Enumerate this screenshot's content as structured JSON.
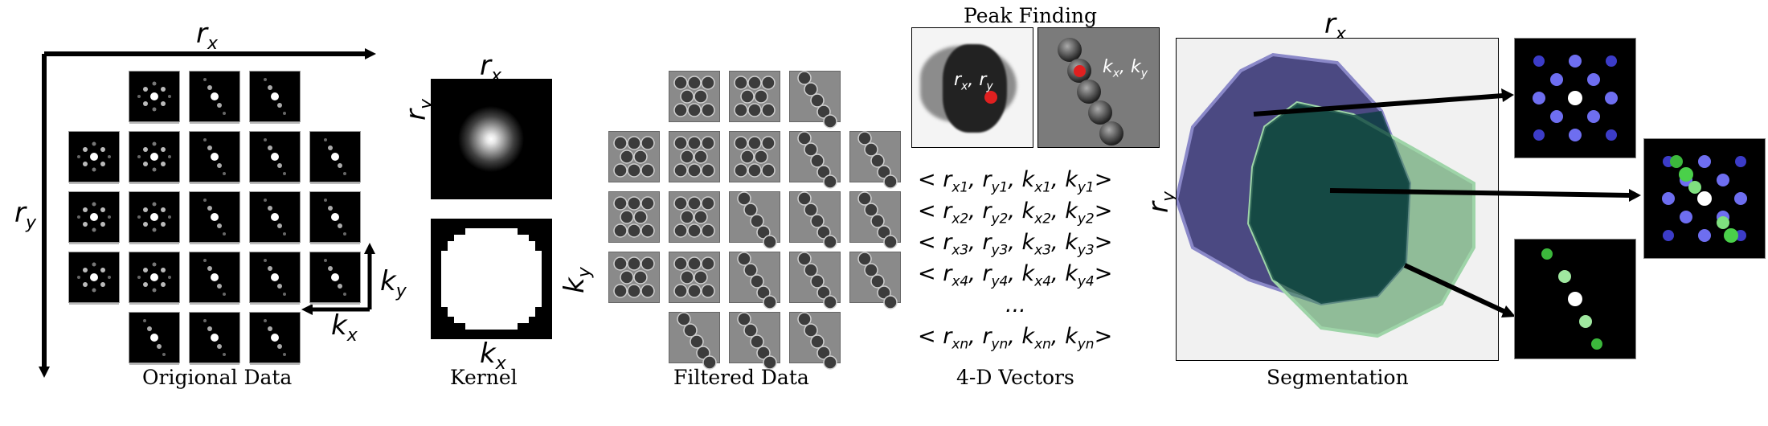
{
  "sections": {
    "original": {
      "caption": "Origional Data",
      "x_axis": "r",
      "x_sub": "x",
      "y_axis": "r",
      "y_sub": "y",
      "kx": "k",
      "kx_sub": "x",
      "ky": "k",
      "ky_sub": "y"
    },
    "kernel": {
      "caption": "Kernel",
      "top_label": "r",
      "top_sub": "x",
      "left_label": "r",
      "left_sub": "y",
      "right_label": "k",
      "right_sub": "y",
      "bottom_label": "k",
      "bottom_sub": "x"
    },
    "filtered": {
      "caption": "Filtered Data"
    },
    "vectors": {
      "caption": "4-D Vectors",
      "peak_title": "Peak Finding",
      "peak_label_r": "r",
      "peak_label_r_sub1": "x",
      "peak_label_r_sub2": "y",
      "peak_label_k": "k",
      "peak_label_k_sub1": "x",
      "peak_label_k_sub2": "y",
      "rows": [
        "1",
        "2",
        "3",
        "4",
        "…",
        "n"
      ]
    },
    "segmentation": {
      "caption": "Segmentation",
      "x_label": "r",
      "x_sub": "x",
      "y_label": "r",
      "y_sub": "y"
    }
  },
  "colors": {
    "blue_region": "#2e2c6e",
    "green_region": "#3f8f4f",
    "peak_dot": "#e02020"
  }
}
